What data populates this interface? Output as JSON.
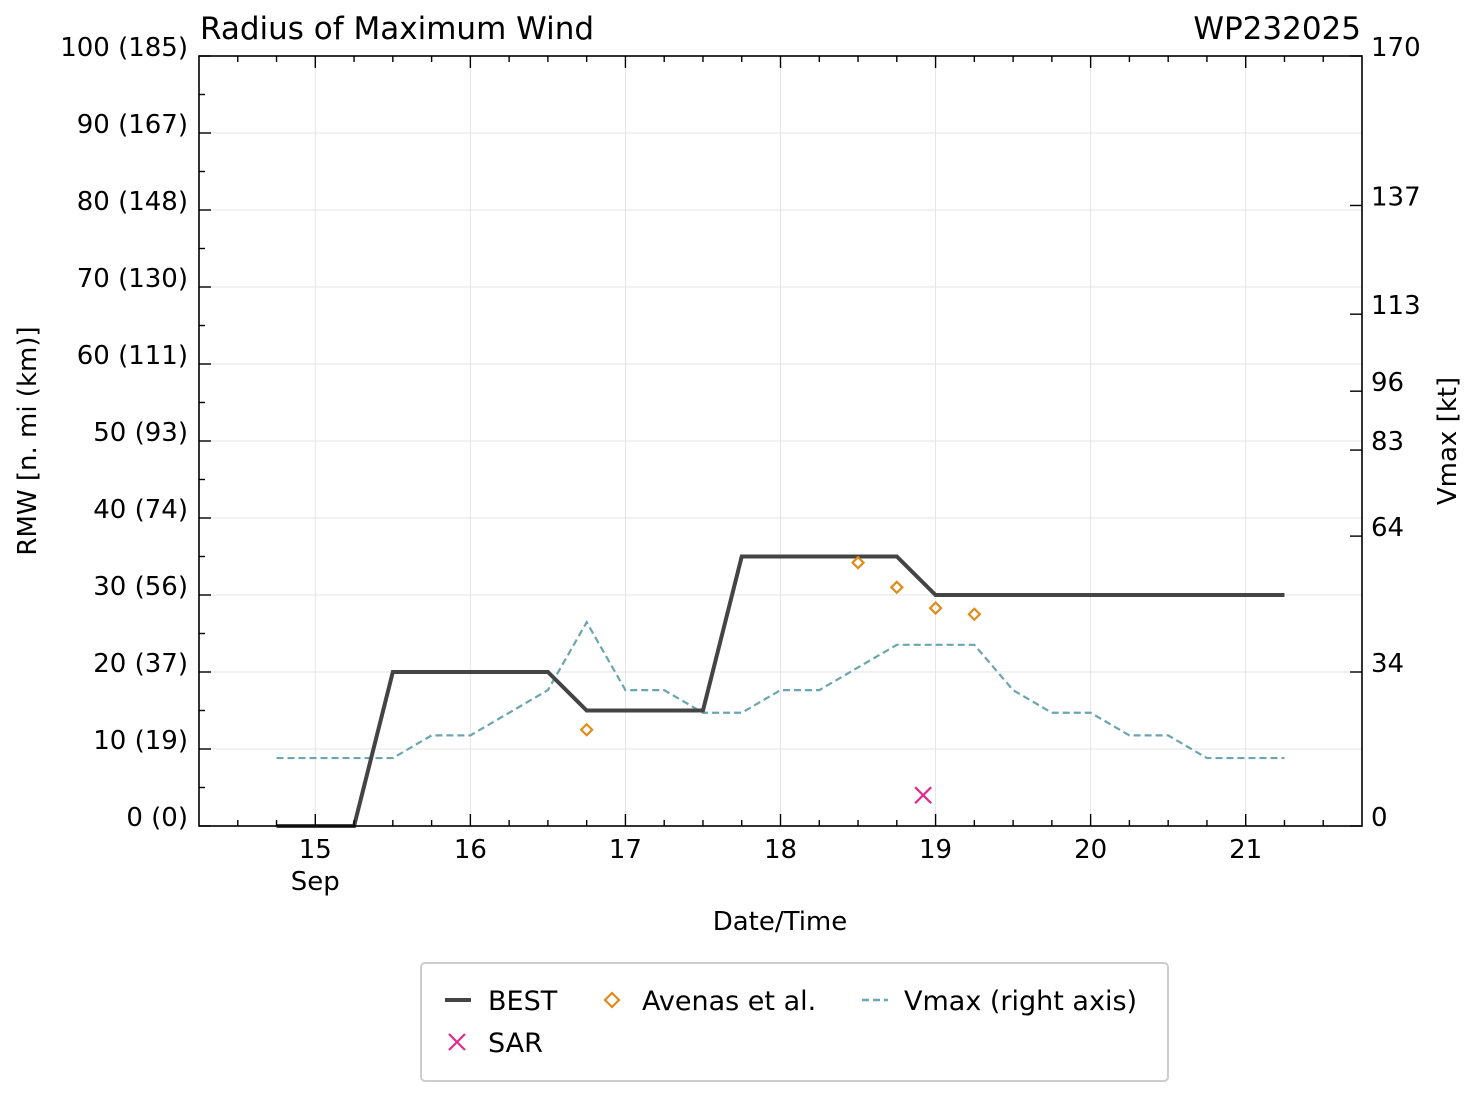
{
  "chart_data": {
    "type": "line",
    "title": "Radius of Maximum Wind",
    "storm_id": "WP232025",
    "xlabel": "Date/Time",
    "ylabel": "RMW [n. mi (km)]",
    "y2label": "Vmax [kt]",
    "xlim": [
      14.25,
      21.75
    ],
    "ylim": [
      0,
      100
    ],
    "y2lim": [
      0,
      170
    ],
    "x_ticks": [
      {
        "value": 15,
        "label": "15"
      },
      {
        "value": 16,
        "label": "16"
      },
      {
        "value": 17,
        "label": "17"
      },
      {
        "value": 18,
        "label": "18"
      },
      {
        "value": 19,
        "label": "19"
      },
      {
        "value": 20,
        "label": "20"
      },
      {
        "value": 21,
        "label": "21"
      }
    ],
    "x_sublabel": {
      "value": 15,
      "label": "Sep"
    },
    "y_ticks": [
      {
        "value": 0,
        "label": "0 (0)"
      },
      {
        "value": 10,
        "label": "10 (19)"
      },
      {
        "value": 20,
        "label": "20 (37)"
      },
      {
        "value": 30,
        "label": "30 (56)"
      },
      {
        "value": 40,
        "label": "40 (74)"
      },
      {
        "value": 50,
        "label": "50 (93)"
      },
      {
        "value": 60,
        "label": "60 (111)"
      },
      {
        "value": 70,
        "label": "70 (130)"
      },
      {
        "value": 80,
        "label": "80 (148)"
      },
      {
        "value": 90,
        "label": "90 (167)"
      },
      {
        "value": 100,
        "label": "100 (185)"
      }
    ],
    "y2_ticks": [
      {
        "value": 0,
        "label": "0"
      },
      {
        "value": 34,
        "label": "34"
      },
      {
        "value": 64,
        "label": "64"
      },
      {
        "value": 83,
        "label": "83"
      },
      {
        "value": 96,
        "label": "96"
      },
      {
        "value": 113,
        "label": "113"
      },
      {
        "value": 137,
        "label": "137"
      },
      {
        "value": 170,
        "label": "170"
      }
    ],
    "grid": true,
    "legend_position": "bottom-center, below axis",
    "series": [
      {
        "name": "BEST",
        "kind": "line",
        "axis": "left",
        "color": "#444444",
        "points": [
          [
            14.75,
            0
          ],
          [
            15.25,
            0
          ],
          [
            15.5,
            20
          ],
          [
            16.5,
            20
          ],
          [
            16.75,
            15
          ],
          [
            17.5,
            15
          ],
          [
            17.75,
            35
          ],
          [
            18.75,
            35
          ],
          [
            19.0,
            30
          ],
          [
            21.25,
            30
          ]
        ]
      },
      {
        "name": "SAR",
        "kind": "x-marker",
        "axis": "left",
        "color": "#e7298a",
        "points": [
          [
            18.92,
            4
          ]
        ]
      },
      {
        "name": "Avenas et al.",
        "kind": "diamond-marker",
        "axis": "left",
        "color": "#e08b1a",
        "points": [
          [
            16.75,
            12.5
          ],
          [
            18.5,
            34.2
          ],
          [
            18.75,
            31
          ],
          [
            19.0,
            28.3
          ],
          [
            19.25,
            27.5
          ]
        ]
      },
      {
        "name": "Vmax (right axis)",
        "kind": "dashed-line",
        "axis": "right",
        "color": "#6ba6b0",
        "points": [
          [
            14.75,
            15
          ],
          [
            15.5,
            15
          ],
          [
            15.75,
            20
          ],
          [
            16.0,
            20
          ],
          [
            16.25,
            25
          ],
          [
            16.5,
            30
          ],
          [
            16.75,
            45
          ],
          [
            17.0,
            30
          ],
          [
            17.25,
            30
          ],
          [
            17.5,
            25
          ],
          [
            17.75,
            25
          ],
          [
            18.0,
            30
          ],
          [
            18.25,
            30
          ],
          [
            18.5,
            35
          ],
          [
            18.75,
            40
          ],
          [
            19.0,
            40
          ],
          [
            19.25,
            40
          ],
          [
            19.5,
            30
          ],
          [
            19.75,
            25
          ],
          [
            20.0,
            25
          ],
          [
            20.25,
            20
          ],
          [
            20.5,
            20
          ],
          [
            20.75,
            15
          ],
          [
            21.25,
            15
          ]
        ]
      }
    ]
  }
}
